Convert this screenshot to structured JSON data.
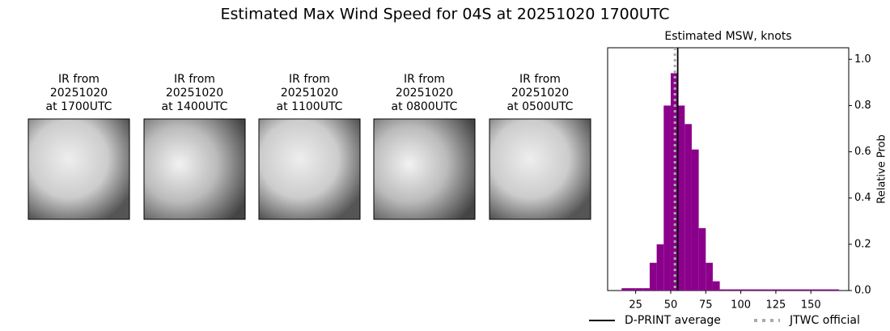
{
  "title": "Estimated Max Wind Speed for 04S at 20251020 1700UTC",
  "panels": [
    {
      "lines": [
        "IR from",
        "20251020",
        "at 1700UTC"
      ]
    },
    {
      "lines": [
        "IR from",
        "20251020",
        "at 1400UTC"
      ]
    },
    {
      "lines": [
        "IR from",
        "20251020",
        "at 1100UTC"
      ]
    },
    {
      "lines": [
        "IR from",
        "20251020",
        "at 0800UTC"
      ]
    },
    {
      "lines": [
        "IR from",
        "20251020",
        "at 0500UTC"
      ]
    }
  ],
  "chart_data": {
    "type": "histogram",
    "title": "Estimated MSW, knots",
    "y_label": "Relative Prob",
    "color": "#8b008b",
    "bins": [
      15,
      20,
      25,
      30,
      35,
      40,
      45,
      50,
      55,
      60,
      65,
      70,
      75,
      80,
      85,
      90,
      95,
      100,
      105,
      110,
      115,
      120,
      125,
      130,
      135,
      140,
      145,
      150,
      155,
      160,
      165,
      170
    ],
    "counts": [
      0.01,
      0.01,
      0.01,
      0.01,
      0.12,
      0.2,
      0.8,
      0.94,
      0.8,
      0.72,
      0.61,
      0.27,
      0.12,
      0.04,
      0.005,
      0.005,
      0.005,
      0.005,
      0.005,
      0.005,
      0.005,
      0.005,
      0.005,
      0.005,
      0.005,
      0.005,
      0.005,
      0.005,
      0.005,
      0.005,
      0.005
    ],
    "xlim": [
      5,
      177
    ],
    "ylim": [
      0,
      1.05
    ],
    "xticks": [
      25,
      50,
      75,
      100,
      125,
      150
    ],
    "yticks": [
      {
        "value": 0,
        "label": "0.0"
      },
      {
        "value": 0.2,
        "label": "0.2"
      },
      {
        "value": 0.4,
        "label": "0.4"
      },
      {
        "value": 0.6,
        "label": "0.6"
      },
      {
        "value": 0.8,
        "label": "0.8"
      },
      {
        "value": 1,
        "label": "1.0"
      }
    ],
    "vlines": [
      {
        "name": "D-PRINT average",
        "value": 55,
        "color": "#000000",
        "dash": false
      },
      {
        "name": "JTWC official",
        "value": 53,
        "color": "#aaaaaa",
        "dash": true
      }
    ]
  }
}
